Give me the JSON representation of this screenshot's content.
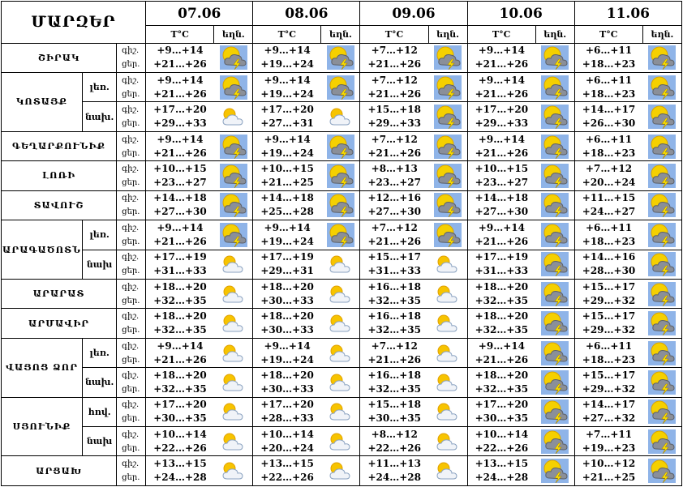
{
  "header": {
    "title": "ՄԱՐԶԵՐ",
    "dates": [
      "07.06",
      "08.06",
      "09.06",
      "10.06",
      "11.06"
    ],
    "temp_label": "T°C",
    "weather_label": "եղն."
  },
  "regions": [
    {
      "name": "ՇԻՐԱԿ",
      "rows": [
        {
          "night_label": "գիշ.",
          "day_label": "ցեր.",
          "forecast": [
            {
              "night": "+9…+14",
              "day": "+21…+26"
            },
            {
              "night": "+9…+14",
              "day": "+19…+24"
            },
            {
              "night": "+7…+12",
              "day": "+21…+26"
            },
            {
              "night": "+9…+14",
              "day": "+21…+26"
            },
            {
              "night": "+6…+11",
              "day": "+18…+23"
            }
          ]
        }
      ]
    },
    {
      "name": "ԿՈՏԱՅՔ",
      "rows": [
        {
          "zone": "լեռ.",
          "night_label": "գիշ.",
          "day_label": "ցեր.",
          "forecast": [
            {
              "night": "+9…+14",
              "day": "+21…+26"
            },
            {
              "night": "+9…+14",
              "day": "+19…+24"
            },
            {
              "night": "+7…+12",
              "day": "+21…+26"
            },
            {
              "night": "+9…+14",
              "day": "+21…+26"
            },
            {
              "night": "+6…+11",
              "day": "+18…+23"
            }
          ]
        },
        {
          "zone": "նախ.",
          "night_label": "գիշ.",
          "day_label": "ցեր.",
          "forecast": [
            {
              "night": "+17…+20",
              "day": "+29…+33"
            },
            {
              "night": "+17…+20",
              "day": "+27…+31"
            },
            {
              "night": "+15…+18",
              "day": "+29…+33"
            },
            {
              "night": "+17…+20",
              "day": "+29…+33"
            },
            {
              "night": "+14…+17",
              "day": "+26…+30"
            }
          ]
        }
      ]
    },
    {
      "name": "ԳԵՂԱՐՔՈՒՆԻՔ",
      "rows": [
        {
          "night_label": "գիշ.",
          "day_label": "ցեր.",
          "forecast": [
            {
              "night": "+9…+14",
              "day": "+21…+26"
            },
            {
              "night": "+9…+14",
              "day": "+19…+24"
            },
            {
              "night": "+7…+12",
              "day": "+21…+26"
            },
            {
              "night": "+9…+14",
              "day": "+21…+26"
            },
            {
              "night": "+6…+11",
              "day": "+18…+23"
            }
          ]
        }
      ]
    },
    {
      "name": "ԼՈՌԻ",
      "rows": [
        {
          "night_label": "գիշ.",
          "day_label": "ցեր.",
          "forecast": [
            {
              "night": "+10…+15",
              "day": "+23…+27"
            },
            {
              "night": "+10…+15",
              "day": "+21…+25"
            },
            {
              "night": "+8…+13",
              "day": "+23…+27"
            },
            {
              "night": "+10…+15",
              "day": "+23…+27"
            },
            {
              "night": "+7…+12",
              "day": "+20…+24"
            }
          ]
        }
      ]
    },
    {
      "name": "ՏԱՎՈՒՇ",
      "rows": [
        {
          "night_label": "գիշ.",
          "day_label": "ցեր.",
          "forecast": [
            {
              "night": "+14…+18",
              "day": "+27…+30"
            },
            {
              "night": "+14…+18",
              "day": "+25…+28"
            },
            {
              "night": "+12…+16",
              "day": "+27…+30"
            },
            {
              "night": "+14…+18",
              "day": "+27…+30"
            },
            {
              "night": "+11…+15",
              "day": "+24…+27"
            }
          ]
        }
      ]
    },
    {
      "name": "ԱՐԱԳԱԾՈՏՆ",
      "rows": [
        {
          "zone": "լեռ.",
          "night_label": "գիշ.",
          "day_label": "ցեր.",
          "forecast": [
            {
              "night": "+9…+14",
              "day": "+21…+26"
            },
            {
              "night": "+9…+14",
              "day": "+19…+24"
            },
            {
              "night": "+7…+12",
              "day": "+21…+26"
            },
            {
              "night": "+9…+14",
              "day": "+21…+26"
            },
            {
              "night": "+6…+11",
              "day": "+18…+23"
            }
          ]
        },
        {
          "zone": "նախ",
          "night_label": "գիշ.",
          "day_label": "ցեր.",
          "forecast": [
            {
              "night": "+17…+19",
              "day": "+31…+33"
            },
            {
              "night": "+17…+19",
              "day": "+29…+31"
            },
            {
              "night": "+15…+17",
              "day": "+31…+33"
            },
            {
              "night": "+17…+19",
              "day": "+31…+33"
            },
            {
              "night": "+14…+16",
              "day": "+28…+30"
            }
          ]
        }
      ]
    },
    {
      "name": "ԱՐԱՐԱՏ",
      "rows": [
        {
          "night_label": "գիշ.",
          "day_label": "ցեր.",
          "forecast": [
            {
              "night": "+18…+20",
              "day": "+32…+35"
            },
            {
              "night": "+18…+20",
              "day": "+30…+33"
            },
            {
              "night": "+16…+18",
              "day": "+32…+35"
            },
            {
              "night": "+18…+20",
              "day": "+32…+35"
            },
            {
              "night": "+15…+17",
              "day": "+29…+32"
            }
          ]
        }
      ]
    },
    {
      "name": "ԱՐՄԱՎԻՐ",
      "rows": [
        {
          "night_label": "գիշ.",
          "day_label": "ցեր.",
          "forecast": [
            {
              "night": "+18…+20",
              "day": "+32…+35"
            },
            {
              "night": "+18…+20",
              "day": "+30…+33"
            },
            {
              "night": "+16…+18",
              "day": "+32…+35"
            },
            {
              "night": "+18…+20",
              "day": "+32…+35"
            },
            {
              "night": "+15…+17",
              "day": "+29…+32"
            }
          ]
        }
      ]
    },
    {
      "name": "ՎԱՅՈՑ ՁՈՐ",
      "rows": [
        {
          "zone": "լեռ.",
          "night_label": "գիշ.",
          "day_label": "ցեր.",
          "forecast": [
            {
              "night": "+9…+14",
              "day": "+21…+26"
            },
            {
              "night": "+9…+14",
              "day": "+19…+24"
            },
            {
              "night": "+7…+12",
              "day": "+21…+26"
            },
            {
              "night": "+9…+14",
              "day": "+21…+26"
            },
            {
              "night": "+6…+11",
              "day": "+18…+23"
            }
          ]
        },
        {
          "zone": "նախ.",
          "night_label": "գիշ.",
          "day_label": "ցեր.",
          "forecast": [
            {
              "night": "+18…+20",
              "day": "+32…+35"
            },
            {
              "night": "+18…+20",
              "day": "+30…+33"
            },
            {
              "night": "+16…+18",
              "day": "+32…+35"
            },
            {
              "night": "+18…+20",
              "day": "+32…+35"
            },
            {
              "night": "+15…+17",
              "day": "+29…+32"
            }
          ]
        }
      ]
    },
    {
      "name": "ՍՅՈՒՆԻՔ",
      "rows": [
        {
          "zone": "հով.",
          "night_label": "գիշ.",
          "day_label": "ցեր.",
          "forecast": [
            {
              "night": "+17…+20",
              "day": "+30…+35"
            },
            {
              "night": "+17…+20",
              "day": "+28…+33"
            },
            {
              "night": "+15…+18",
              "day": "+30…+35"
            },
            {
              "night": "+17…+20",
              "day": "+30…+35"
            },
            {
              "night": "+14…+17",
              "day": "+27…+32"
            }
          ]
        },
        {
          "zone": "նախ",
          "night_label": "գիշ.",
          "day_label": "ցեր.",
          "forecast": [
            {
              "night": "+10…+14",
              "day": "+22…+26"
            },
            {
              "night": "+10…+14",
              "day": "+20…+24"
            },
            {
              "night": "+8…+12",
              "day": "+22…+26"
            },
            {
              "night": "+10…+14",
              "day": "+22…+26"
            },
            {
              "night": "+7…+11",
              "day": "+19…+23"
            }
          ]
        }
      ]
    },
    {
      "name": "ԱՐՑԱԽ",
      "rows": [
        {
          "night_label": "գիշ.",
          "day_label": "ցեր.",
          "forecast": [
            {
              "night": "+13…+15",
              "day": "+24…+28"
            },
            {
              "night": "+13…+15",
              "day": "+22…+26"
            },
            {
              "night": "+11…+13",
              "day": "+24…+28"
            },
            {
              "night": "+13…+15",
              "day": "+24…+28"
            },
            {
              "night": "+10…+12",
              "day": "+21…+25"
            }
          ]
        }
      ]
    }
  ]
}
